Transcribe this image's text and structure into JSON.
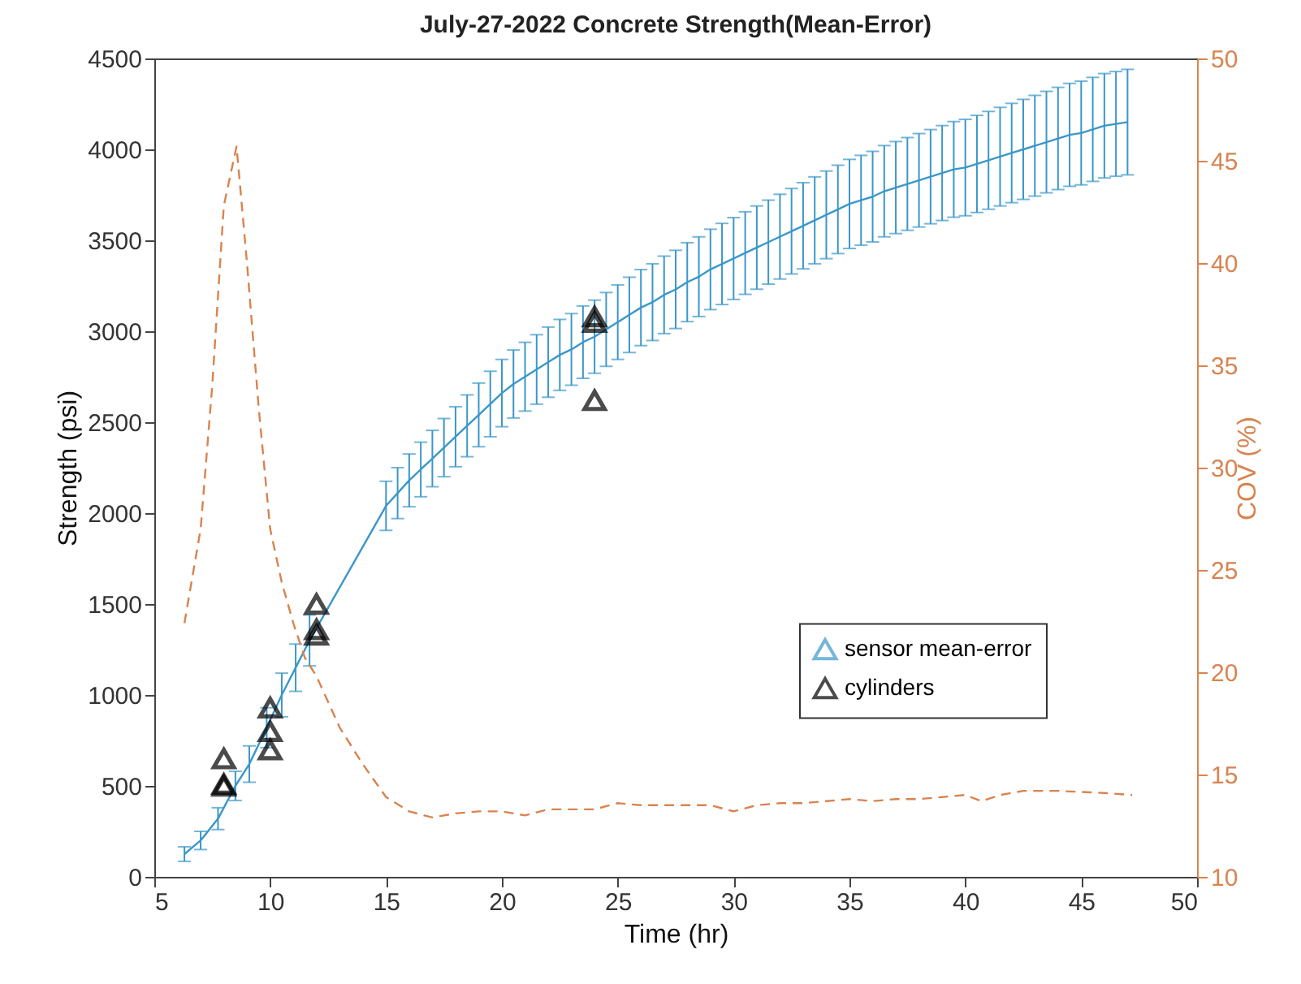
{
  "chart_data": {
    "type": "line",
    "title": "July-27-2022 Concrete Strength(Mean-Error)",
    "xlabel": "Time (hr)",
    "ylabel": "Strength (psi)",
    "y2label": "COV (%)",
    "xlim": [
      5,
      50
    ],
    "xticks": [
      5,
      10,
      15,
      20,
      25,
      30,
      35,
      40,
      45,
      50
    ],
    "ylim": [
      0,
      4500
    ],
    "yticks": [
      0,
      500,
      1000,
      1500,
      2000,
      2500,
      3000,
      3500,
      4000,
      4500
    ],
    "y2lim": [
      10,
      50
    ],
    "y2ticks": [
      10,
      15,
      20,
      25,
      30,
      35,
      40,
      45,
      50
    ],
    "grid": false,
    "legend": "right",
    "series": [
      {
        "name": "sensor mean-error",
        "type": "line",
        "color": "#3b97c9",
        "x": [
          6.3,
          7,
          7.75,
          8.5,
          9.1,
          9.85,
          10.5,
          11.1,
          11.7,
          15,
          15.5,
          16,
          16.5,
          17,
          17.5,
          18,
          18.5,
          19,
          19.5,
          20,
          20.5,
          21,
          21.5,
          22,
          22.5,
          23,
          23.5,
          24,
          24.5,
          25,
          25.5,
          26,
          26.5,
          27,
          27.5,
          28,
          28.5,
          29,
          29.5,
          30,
          30.5,
          31,
          31.5,
          32,
          32.5,
          33,
          33.5,
          34,
          34.5,
          35,
          35.5,
          36,
          36.5,
          37,
          37.5,
          38,
          38.5,
          39,
          39.5,
          40,
          40.5,
          41,
          41.5,
          42,
          42.5,
          43,
          43.5,
          44,
          44.5,
          45,
          45.5,
          46,
          46.5,
          47
        ],
        "values": [
          125,
          200,
          320,
          500,
          620,
          820,
          1000,
          1150,
          1300,
          2040,
          2110,
          2180,
          2240,
          2300,
          2360,
          2420,
          2480,
          2540,
          2600,
          2660,
          2710,
          2750,
          2790,
          2830,
          2870,
          2900,
          2940,
          2970,
          3010,
          3050,
          3090,
          3130,
          3160,
          3200,
          3230,
          3270,
          3300,
          3340,
          3370,
          3400,
          3430,
          3460,
          3490,
          3520,
          3550,
          3580,
          3610,
          3640,
          3670,
          3700,
          3720,
          3740,
          3770,
          3790,
          3810,
          3830,
          3850,
          3870,
          3890,
          3900,
          3920,
          3940,
          3960,
          3980,
          4000,
          4020,
          4040,
          4060,
          4080,
          4090,
          4110,
          4130,
          4140,
          4150
        ],
        "errors": [
          40,
          50,
          60,
          80,
          100,
          110,
          120,
          130,
          140,
          135,
          140,
          145,
          150,
          155,
          160,
          165,
          170,
          175,
          180,
          185,
          187,
          189,
          191,
          193,
          195,
          197,
          199,
          201,
          203,
          205,
          207,
          209,
          211,
          213,
          215,
          217,
          219,
          221,
          223,
          225,
          227,
          229,
          231,
          233,
          235,
          237,
          239,
          241,
          243,
          245,
          247,
          249,
          251,
          253,
          255,
          257,
          259,
          261,
          263,
          265,
          267,
          269,
          271,
          273,
          275,
          277,
          279,
          281,
          283,
          285,
          286,
          287,
          288,
          290
        ]
      },
      {
        "name": "cylinders",
        "type": "scatter",
        "color": "#000000",
        "marker": "triangle",
        "x": [
          8,
          8,
          8,
          10,
          10,
          10,
          12,
          12,
          12,
          24,
          24,
          24
        ],
        "values": [
          650,
          510,
          500,
          930,
          800,
          700,
          1500,
          1360,
          1330,
          3080,
          3050,
          2620
        ]
      },
      {
        "type": "line",
        "axis": "y2",
        "color": "#d9834f",
        "line_style": "dashed",
        "x": [
          6.3,
          7,
          7.5,
          8,
          8.55,
          9,
          9.5,
          10,
          10.5,
          11,
          11.5,
          12,
          13,
          14,
          15,
          16,
          17,
          18,
          19,
          20,
          21,
          22,
          23,
          24,
          25,
          26,
          27,
          28,
          29,
          30,
          31,
          32,
          33,
          34,
          35,
          36,
          37,
          38,
          39,
          40,
          40.7,
          41.5,
          42.5,
          44,
          46,
          47.2
        ],
        "values": [
          22.4,
          27,
          34,
          42.8,
          45.7,
          40,
          33,
          27,
          24.4,
          22.4,
          20.7,
          19.8,
          17.3,
          15.5,
          13.9,
          13.2,
          12.9,
          13.1,
          13.2,
          13.2,
          13.0,
          13.3,
          13.3,
          13.3,
          13.6,
          13.5,
          13.5,
          13.5,
          13.5,
          13.2,
          13.5,
          13.6,
          13.6,
          13.7,
          13.8,
          13.7,
          13.8,
          13.8,
          13.9,
          14.0,
          13.7,
          14.0,
          14.2,
          14.2,
          14.1,
          14.0
        ]
      }
    ]
  }
}
